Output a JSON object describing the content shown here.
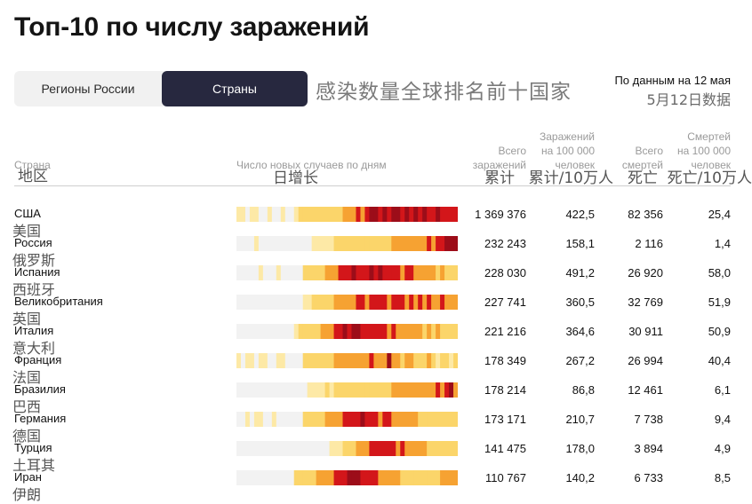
{
  "title": "Топ-10 по числу заражений",
  "toggle": {
    "regions": "Регионы России",
    "countries": "Страны",
    "selected": "countries"
  },
  "cn_title": "感染数量全球排名前十国家",
  "source": {
    "ru": "По данным на 12 мая",
    "cn": "5月12日数据"
  },
  "headers": {
    "country": {
      "ru": "Страна",
      "cn": "地区"
    },
    "daily": {
      "ru": "Число новых случаев по дням",
      "cn": "日增长"
    },
    "total": {
      "ru": [
        "Всего",
        "заражений"
      ],
      "cn": "累计"
    },
    "per100k": {
      "ru": [
        "Заражений",
        "на 100 000",
        "человек"
      ],
      "cn": "累计/10万人"
    },
    "deaths": {
      "ru": [
        "Всего",
        "смертей"
      ],
      "cn": "死亡"
    },
    "deaths100k": {
      "ru": [
        "Смертей",
        "на 100 000",
        "человек"
      ],
      "cn": "死亡/10万人"
    }
  },
  "colors": {
    "none": "#f2f2f2",
    "pale": "#fde9a6",
    "yellow": "#fbd56a",
    "orange": "#f6a232",
    "redorange": "#ec5a1c",
    "red": "#d3161a",
    "dark": "#9c0d19",
    "active_button": "#27283f"
  },
  "chart_data": {
    "type": "heatmap",
    "description_series": "daily new cases intensity per day, levels 0-5",
    "columns": [
      "Страна",
      "Число новых случаев по дням",
      "Всего заражений",
      "Заражений на 100 000 человек",
      "Всего смертей",
      "Смертей на 100 000 человек"
    ],
    "rows": [
      {
        "ru": "США",
        "cn": "美国",
        "total": "1 369 376",
        "per100k": "422,5",
        "deaths": "82 356",
        "deaths100k": "25,4",
        "strip": [
          1,
          1,
          0,
          1,
          1,
          0,
          0,
          1,
          0,
          0,
          1,
          0,
          0,
          1,
          2,
          2,
          2,
          2,
          2,
          2,
          2,
          2,
          2,
          2,
          3,
          3,
          3,
          4,
          3,
          4,
          5,
          5,
          4,
          5,
          4,
          5,
          5,
          4,
          5,
          4,
          5,
          4,
          5,
          4,
          4,
          5,
          4,
          4,
          4,
          4
        ]
      },
      {
        "ru": "Россия",
        "cn": "俄罗斯",
        "total": "232 243",
        "per100k": "158,1",
        "deaths": "2 116",
        "deaths100k": "1,4",
        "strip": [
          0,
          0,
          0,
          0,
          1,
          0,
          0,
          0,
          0,
          0,
          0,
          0,
          0,
          0,
          0,
          0,
          0,
          1,
          1,
          1,
          1,
          1,
          2,
          2,
          2,
          2,
          2,
          2,
          2,
          2,
          2,
          2,
          2,
          2,
          2,
          3,
          3,
          3,
          3,
          3,
          3,
          3,
          3,
          4,
          3,
          4,
          4,
          5,
          5,
          5
        ]
      },
      {
        "ru": "Испания",
        "cn": "西班牙",
        "total": "228 030",
        "per100k": "491,2",
        "deaths": "26 920",
        "deaths100k": "58,0",
        "strip": [
          0,
          0,
          0,
          0,
          0,
          1,
          0,
          0,
          0,
          1,
          0,
          0,
          0,
          0,
          0,
          2,
          2,
          2,
          2,
          2,
          3,
          3,
          3,
          4,
          4,
          4,
          5,
          4,
          4,
          4,
          5,
          4,
          5,
          4,
          4,
          4,
          4,
          3,
          4,
          4,
          3,
          3,
          3,
          3,
          3,
          2,
          3,
          2,
          2,
          2
        ]
      },
      {
        "ru": "Великобритания",
        "cn": "英国",
        "total": "227 741",
        "per100k": "360,5",
        "deaths": "32 769",
        "deaths100k": "51,9",
        "strip": [
          0,
          0,
          0,
          0,
          0,
          0,
          0,
          0,
          0,
          0,
          0,
          0,
          0,
          0,
          0,
          1,
          1,
          2,
          2,
          2,
          2,
          2,
          3,
          3,
          3,
          3,
          3,
          4,
          4,
          3,
          4,
          4,
          4,
          4,
          3,
          4,
          4,
          4,
          3,
          4,
          3,
          4,
          3,
          4,
          3,
          3,
          4,
          3,
          3,
          3
        ]
      },
      {
        "ru": "Италия",
        "cn": "意大利",
        "total": "221 216",
        "per100k": "364,6",
        "deaths": "30 911",
        "deaths100k": "50,9",
        "strip": [
          0,
          0,
          0,
          0,
          0,
          0,
          0,
          0,
          0,
          0,
          0,
          0,
          0,
          1,
          2,
          2,
          2,
          2,
          2,
          3,
          3,
          3,
          4,
          4,
          5,
          4,
          5,
          5,
          4,
          4,
          4,
          4,
          4,
          4,
          3,
          4,
          3,
          3,
          3,
          3,
          3,
          3,
          2,
          3,
          2,
          3,
          2,
          2,
          2,
          2
        ]
      },
      {
        "ru": "Франция",
        "cn": "法国",
        "total": "178 349",
        "per100k": "267,2",
        "deaths": "26 994",
        "deaths100k": "40,4",
        "strip": [
          1,
          0,
          1,
          1,
          0,
          1,
          1,
          0,
          0,
          1,
          1,
          0,
          0,
          0,
          0,
          2,
          2,
          2,
          2,
          2,
          2,
          2,
          3,
          3,
          3,
          3,
          3,
          3,
          3,
          3,
          4,
          3,
          3,
          3,
          5,
          3,
          3,
          2,
          3,
          3,
          2,
          2,
          2,
          3,
          2,
          1,
          2,
          2,
          1,
          2
        ]
      },
      {
        "ru": "Бразилия",
        "cn": "巴西",
        "total": "178 214",
        "per100k": "86,8",
        "deaths": "12 461",
        "deaths100k": "6,1",
        "strip": [
          0,
          0,
          0,
          0,
          0,
          0,
          0,
          0,
          0,
          0,
          0,
          0,
          0,
          0,
          0,
          0,
          1,
          1,
          1,
          1,
          2,
          1,
          2,
          2,
          2,
          2,
          2,
          2,
          2,
          2,
          2,
          2,
          2,
          2,
          2,
          3,
          3,
          3,
          3,
          3,
          3,
          3,
          3,
          3,
          3,
          4,
          3,
          4,
          5,
          3
        ]
      },
      {
        "ru": "Германия",
        "cn": "德国",
        "total": "173 171",
        "per100k": "210,7",
        "deaths": "7 738",
        "deaths100k": "9,4",
        "strip": [
          0,
          0,
          1,
          0,
          1,
          1,
          0,
          0,
          1,
          0,
          0,
          0,
          0,
          0,
          0,
          2,
          2,
          2,
          2,
          2,
          3,
          3,
          3,
          3,
          4,
          4,
          4,
          4,
          5,
          4,
          4,
          4,
          3,
          4,
          4,
          3,
          3,
          3,
          3,
          3,
          3,
          2,
          2,
          2,
          2,
          2,
          2,
          2,
          2,
          2
        ]
      },
      {
        "ru": "Турция",
        "cn": "土耳其",
        "total": "141 475",
        "per100k": "178,0",
        "deaths": "3 894",
        "deaths100k": "4,9",
        "strip": [
          0,
          0,
          0,
          0,
          0,
          0,
          0,
          0,
          0,
          0,
          0,
          0,
          0,
          0,
          0,
          0,
          0,
          0,
          0,
          0,
          0,
          1,
          1,
          1,
          2,
          2,
          2,
          3,
          3,
          3,
          4,
          4,
          4,
          4,
          4,
          4,
          3,
          4,
          3,
          3,
          3,
          3,
          3,
          2,
          2,
          2,
          2,
          2,
          2,
          2
        ]
      },
      {
        "ru": "Иран",
        "cn": "伊朗",
        "total": "110 767",
        "per100k": "140,2",
        "deaths": "6 733",
        "deaths100k": "8,5",
        "strip": [
          0,
          0,
          0,
          0,
          0,
          0,
          0,
          0,
          0,
          0,
          0,
          0,
          0,
          2,
          2,
          2,
          2,
          2,
          3,
          3,
          3,
          3,
          4,
          4,
          4,
          5,
          5,
          5,
          4,
          4,
          4,
          4,
          3,
          3,
          3,
          3,
          3,
          2,
          2,
          2,
          2,
          2,
          2,
          2,
          2,
          2,
          3,
          3,
          3,
          3
        ]
      }
    ]
  }
}
